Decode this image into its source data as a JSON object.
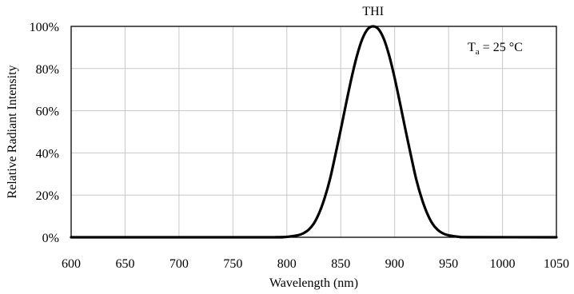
{
  "chart_data": {
    "type": "line",
    "title": "THI",
    "xlabel": "Wavelength (nm)",
    "ylabel": "Relative Radiant Intensity",
    "xlim": [
      600,
      1050
    ],
    "ylim": [
      0,
      100
    ],
    "x_ticks": [
      600,
      650,
      700,
      750,
      800,
      850,
      900,
      950,
      1000,
      1050
    ],
    "x_tick_labels": [
      "600",
      "650",
      "700",
      "750",
      "800",
      "850",
      "900",
      "950",
      "1000",
      "1050"
    ],
    "y_ticks": [
      0,
      20,
      40,
      60,
      80,
      100
    ],
    "y_tick_labels": [
      "0%",
      "20%",
      "40%",
      "60%",
      "80%",
      "100%"
    ],
    "grid": true,
    "annotation": {
      "symbol": "T",
      "subscript": "a",
      "rest": " = 25 °C",
      "placement": "top-right"
    },
    "series": [
      {
        "x": [
          600,
          780,
          790,
          800,
          810,
          815,
          820,
          825,
          830,
          835,
          840,
          845,
          850,
          855,
          860,
          865,
          870,
          875,
          880,
          885,
          890,
          895,
          900,
          905,
          910,
          915,
          920,
          925,
          930,
          935,
          940,
          945,
          950,
          960,
          970,
          1050
        ],
        "values": [
          0,
          0,
          0.05,
          0.2,
          0.9,
          1.8,
          3.5,
          6.5,
          11.5,
          18.5,
          27.5,
          39,
          51,
          63.5,
          75.5,
          86,
          94,
          98.7,
          100,
          98.7,
          94,
          86,
          75.5,
          63.5,
          51,
          39,
          27.5,
          18.5,
          11.5,
          6.5,
          3.5,
          1.8,
          0.9,
          0.2,
          0.05,
          0
        ],
        "color": "#000000"
      }
    ]
  }
}
